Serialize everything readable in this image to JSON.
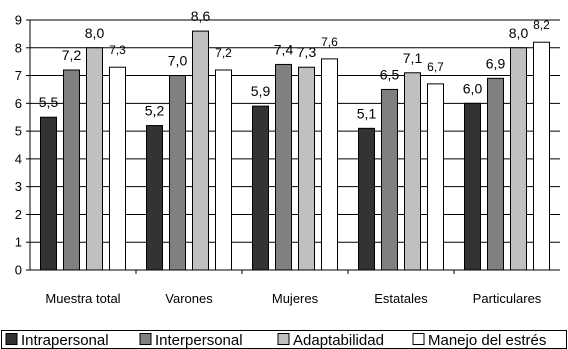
{
  "chart_data": {
    "type": "bar",
    "categories": [
      "Muestra total",
      "Varones",
      "Mujeres",
      "Estatales",
      "Particulares"
    ],
    "series": [
      {
        "name": "Intrapersonal",
        "color": "#333333",
        "values": [
          5.5,
          5.2,
          5.9,
          5.1,
          6.0
        ],
        "labels": [
          "5,5",
          "5,2",
          "5,9",
          "5,1",
          "6,0"
        ]
      },
      {
        "name": "Interpersonal",
        "color": "#808080",
        "values": [
          7.2,
          7.0,
          7.4,
          6.5,
          6.9
        ],
        "labels": [
          "7,2",
          "7,0",
          "7,4",
          "6,5",
          "6,9"
        ]
      },
      {
        "name": "Adaptabilidad",
        "color": "#c0c0c0",
        "values": [
          8.0,
          8.6,
          7.3,
          7.1,
          8.0
        ],
        "labels": [
          "8,0",
          "8,6",
          "7,3",
          "7,1",
          "8,0"
        ]
      },
      {
        "name": "Manejo del estrés",
        "color": "#ffffff",
        "values": [
          7.3,
          7.2,
          7.6,
          6.7,
          8.2
        ],
        "labels": [
          "7,3",
          "7,2",
          "7,6",
          "6,7",
          "8,2"
        ]
      }
    ],
    "yticks": [
      "0",
      "1",
      "2",
      "3",
      "4",
      "5",
      "6",
      "7",
      "8",
      "9"
    ],
    "ylim": [
      0,
      9
    ],
    "grid": true,
    "legend_position": "bottom"
  }
}
